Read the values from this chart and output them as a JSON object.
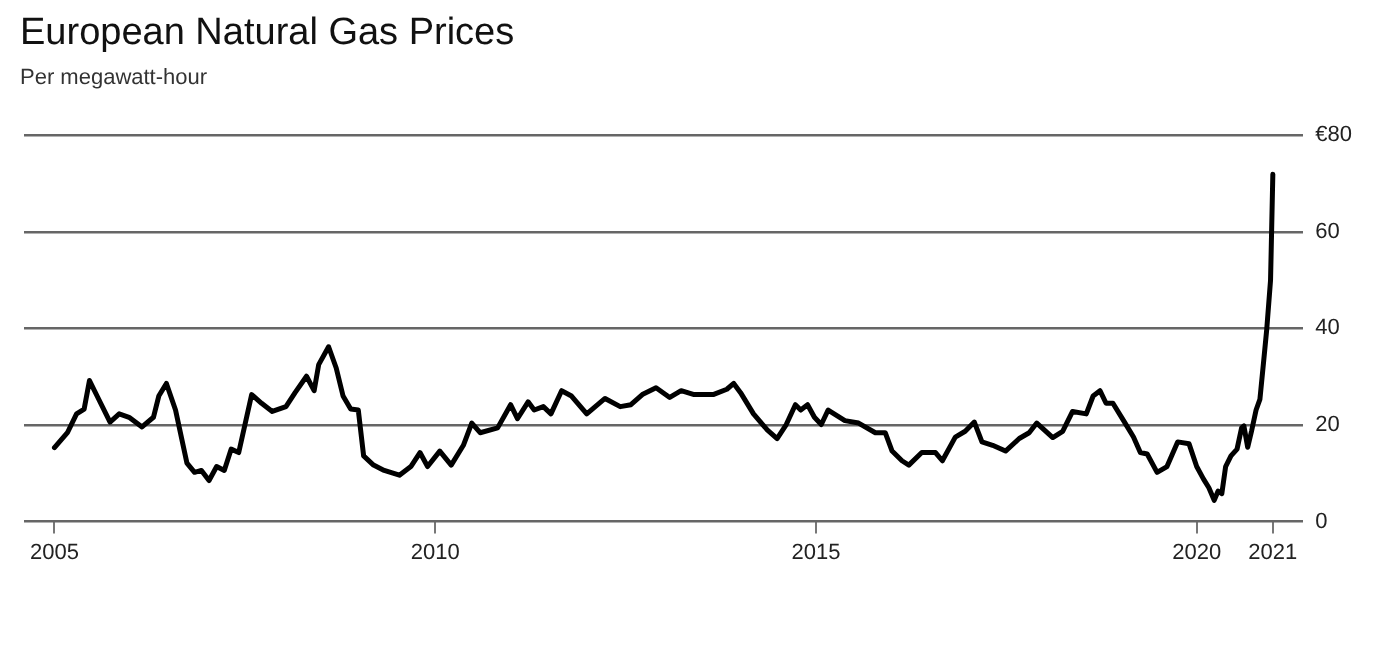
{
  "chart_data": {
    "type": "line",
    "title": "European Natural Gas Prices",
    "subtitle": "Per megawatt-hour",
    "x": [
      2005.0,
      2005.17,
      2005.29,
      2005.39,
      2005.46,
      2005.56,
      2005.73,
      2005.85,
      2005.98,
      2006.15,
      2006.3,
      2006.37,
      2006.47,
      2006.59,
      2006.74,
      2006.84,
      2006.93,
      2007.03,
      2007.13,
      2007.23,
      2007.32,
      2007.42,
      2007.59,
      2007.72,
      2007.86,
      2008.04,
      2008.16,
      2008.31,
      2008.41,
      2008.47,
      2008.6,
      2008.7,
      2008.79,
      2008.89,
      2008.99,
      2009.06,
      2009.19,
      2009.33,
      2009.53,
      2009.68,
      2009.8,
      2009.9,
      2010.06,
      2010.21,
      2010.37,
      2010.48,
      2010.59,
      2010.82,
      2010.99,
      2011.08,
      2011.22,
      2011.3,
      2011.42,
      2011.52,
      2011.66,
      2011.79,
      2011.99,
      2012.23,
      2012.43,
      2012.57,
      2012.72,
      2012.9,
      2013.08,
      2013.23,
      2013.4,
      2013.65,
      2013.83,
      2013.92,
      2014.01,
      2014.18,
      2014.36,
      2014.49,
      2014.61,
      2014.73,
      2014.8,
      2014.89,
      2014.98,
      2015.07,
      2015.16,
      2015.38,
      2015.56,
      2015.78,
      2015.91,
      2016.0,
      2016.13,
      2016.22,
      2016.39,
      2016.57,
      2016.66,
      2016.83,
      2016.96,
      2017.08,
      2017.18,
      2017.32,
      2017.49,
      2017.67,
      2017.8,
      2017.9,
      2018.11,
      2018.24,
      2018.37,
      2018.55,
      2018.64,
      2018.73,
      2018.81,
      2018.9,
      2019.04,
      2019.17,
      2019.26,
      2019.35,
      2019.48,
      2019.61,
      2019.75,
      2019.9,
      2020.0,
      2020.09,
      2020.16,
      2020.23,
      2020.28,
      2020.33,
      2020.38,
      2020.45,
      2020.53,
      2020.59,
      2020.62,
      2020.67,
      2020.72,
      2020.78,
      2020.83,
      2020.88,
      2020.92,
      2020.97,
      2021.0
    ],
    "series": [
      {
        "color": "#000000",
        "values": [
          15.3,
          18.4,
          22.3,
          23.3,
          29.2,
          26.0,
          20.6,
          22.3,
          21.6,
          19.6,
          21.6,
          26.0,
          28.6,
          23.1,
          12.1,
          10.2,
          10.6,
          8.5,
          11.4,
          10.6,
          15.0,
          14.3,
          26.3,
          24.5,
          22.8,
          23.8,
          26.7,
          30.1,
          27.1,
          32.5,
          36.2,
          31.8,
          26.0,
          23.3,
          23.1,
          13.6,
          11.7,
          10.6,
          9.6,
          11.4,
          14.3,
          11.4,
          14.6,
          11.7,
          15.8,
          20.4,
          18.4,
          19.4,
          24.2,
          21.3,
          24.8,
          23.1,
          23.8,
          22.3,
          27.1,
          26.0,
          22.3,
          25.5,
          23.8,
          24.2,
          26.3,
          27.7,
          25.7,
          27.1,
          26.3,
          26.3,
          27.4,
          28.6,
          26.7,
          22.3,
          19.0,
          17.2,
          20.1,
          24.2,
          23.1,
          24.2,
          21.6,
          20.1,
          23.1,
          20.9,
          20.4,
          18.4,
          18.4,
          14.6,
          12.6,
          11.7,
          14.3,
          14.3,
          12.6,
          17.5,
          18.7,
          20.6,
          16.5,
          15.8,
          14.6,
          17.2,
          18.4,
          20.4,
          17.4,
          18.7,
          22.8,
          22.3,
          26.0,
          27.1,
          24.5,
          24.5,
          20.9,
          17.5,
          14.3,
          14.0,
          10.2,
          11.4,
          16.5,
          16.1,
          11.4,
          8.8,
          7.0,
          4.4,
          6.3,
          5.8,
          11.4,
          13.6,
          15.0,
          19.4,
          19.8,
          15.4,
          18.7,
          23.1,
          25.3,
          33.3,
          39.8,
          50.0,
          71.9
        ]
      }
    ],
    "xlim": [
      2004.6,
      2021.4
    ],
    "xticks": [
      2005,
      2010,
      2015,
      2020,
      2021
    ],
    "ylim": [
      0,
      80
    ],
    "yticks": [
      0,
      20,
      40,
      60,
      {
        "value": 80,
        "label": "€80"
      }
    ],
    "grid": "y",
    "legend": false,
    "marker": "none",
    "line_style": "solid"
  }
}
